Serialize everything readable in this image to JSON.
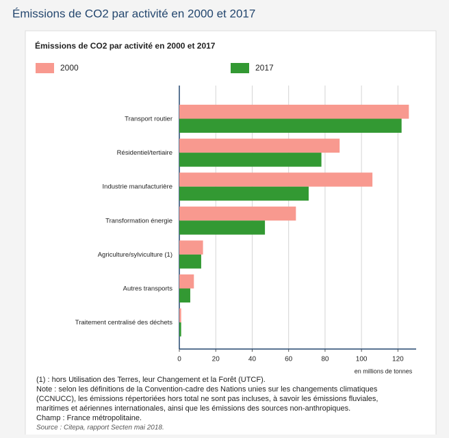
{
  "page_title": "Émissions de CO2 par activité en 2000 et 2017",
  "chart_data": {
    "type": "hbar",
    "title": "Émissions de CO2 par activité en 2000 et 2017",
    "categories": [
      "Transport routier",
      "Résidentiel/tertiaire",
      "Industrie manufacturière",
      "Transformation énergie",
      "Agriculture/sylviculture (1)",
      "Autres transports",
      "Traitement centralisé des déchets"
    ],
    "series": [
      {
        "name": "2000",
        "color": "#f8998f",
        "values": [
          126,
          88,
          106,
          64,
          13,
          8,
          1
        ]
      },
      {
        "name": "2017",
        "color": "#339933",
        "values": [
          122,
          78,
          71,
          47,
          12,
          6,
          1
        ]
      }
    ],
    "xlim": [
      0,
      130
    ],
    "xticks": [
      0,
      20,
      40,
      60,
      80,
      100,
      120
    ],
    "grid": true,
    "x_label": "en millions de tonnes",
    "notes": [
      "(1) : hors Utilisation des Terres, leur Changement et la Forêt (UTCF).",
      "Note : selon les définitions de la Convention-cadre des Nations unies sur les changements climatiques",
      "(CCNUCC), les émissions répertoriées hors total ne sont pas incluses, à savoir les émissions fluviales,",
      "maritimes et aériennes internationales, ainsi que les émissions des sources non-anthropiques.",
      "Champ : France métropolitaine."
    ],
    "source": "Source : Citepa, rapport Secten mai 2018."
  }
}
